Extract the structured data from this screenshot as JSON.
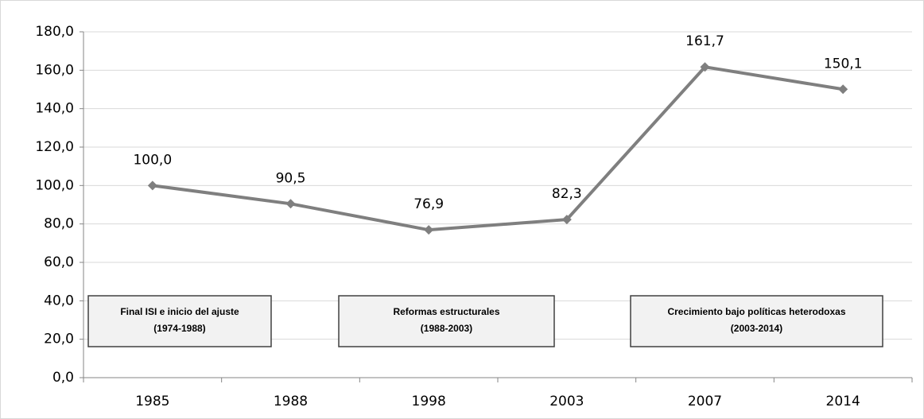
{
  "chart_data": {
    "type": "line",
    "categories": [
      "1985",
      "1988",
      "1998",
      "2003",
      "2007",
      "2014"
    ],
    "series": [
      {
        "color": "#7f7f7f",
        "values": [
          100.0,
          90.5,
          76.9,
          82.3,
          161.7,
          150.1
        ],
        "value_labels": [
          "100,0",
          "90,5",
          "76,9",
          "82,3",
          "161,7",
          "150,1"
        ]
      }
    ],
    "ylim": [
      0,
      180
    ],
    "yticks": [
      {
        "value": 0,
        "label": "0,0"
      },
      {
        "value": 20,
        "label": "20,0"
      },
      {
        "value": 40,
        "label": "40,0"
      },
      {
        "value": 60,
        "label": "60,0"
      },
      {
        "value": 80,
        "label": "80,0"
      },
      {
        "value": 100,
        "label": "100,0"
      },
      {
        "value": 120,
        "label": "120,0"
      },
      {
        "value": 140,
        "label": "140,0"
      },
      {
        "value": 160,
        "label": "160,0"
      },
      {
        "value": 180,
        "label": "180,0"
      }
    ],
    "grid": true,
    "annotations": [
      {
        "title": "Final ISI e inicio del ajuste",
        "period": "(1974-1988)"
      },
      {
        "title": "Reformas estructurales",
        "period": "(1988-2003)"
      },
      {
        "title": "Crecimiento bajo políticas heterodoxas",
        "period": "(2003-2014)"
      }
    ]
  }
}
